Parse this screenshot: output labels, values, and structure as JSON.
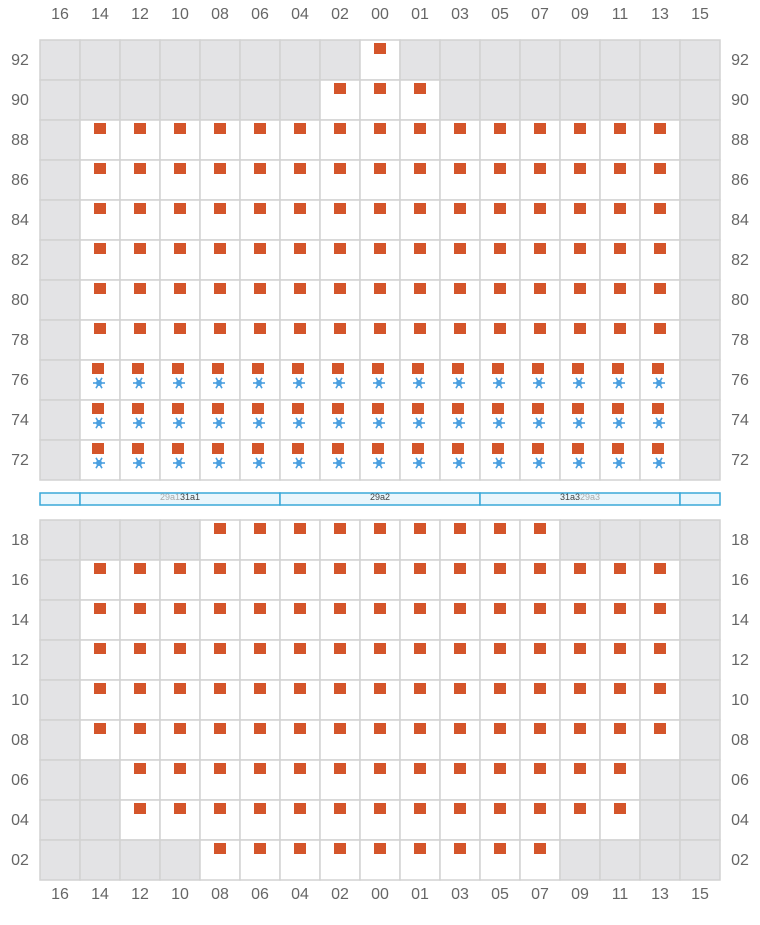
{
  "columns": [
    "16",
    "14",
    "12",
    "10",
    "08",
    "06",
    "04",
    "02",
    "00",
    "01",
    "03",
    "05",
    "07",
    "09",
    "11",
    "13",
    "15"
  ],
  "sections": [
    {
      "rows": [
        {
          "label": "92",
          "cells": "xxxxxxxxcxxxxxxxx"
        },
        {
          "label": "90",
          "cells": "xxxxxxxcccxxxxxxx"
        },
        {
          "label": "88",
          "cells": "xcccccccccccccccx"
        },
        {
          "label": "86",
          "cells": "xcccccccccccccccx"
        },
        {
          "label": "84",
          "cells": "xcccccccccccccccx"
        },
        {
          "label": "82",
          "cells": "xcccccccccccccccx"
        },
        {
          "label": "80",
          "cells": "xcccccccccccccccx"
        },
        {
          "label": "78",
          "cells": "xcccccccccccccccx"
        },
        {
          "label": "76",
          "cells": "xrrrrrrrrrrrrrrrx"
        },
        {
          "label": "74",
          "cells": "xrrrrrrrrrrrrrrrx"
        },
        {
          "label": "72",
          "cells": "xrrrrrrrrrrrrrrrx"
        }
      ]
    },
    {
      "rows": [
        {
          "label": "18",
          "cells": "xxxxcccccccccxxxx"
        },
        {
          "label": "16",
          "cells": "xcccccccccccccccx"
        },
        {
          "label": "14",
          "cells": "xcccccccccccccccx"
        },
        {
          "label": "12",
          "cells": "xcccccccccccccccx"
        },
        {
          "label": "10",
          "cells": "xcccccccccccccccx"
        },
        {
          "label": "08",
          "cells": "xcccccccccccccccx"
        },
        {
          "label": "06",
          "cells": "xxcccccccccccccxx"
        },
        {
          "label": "04",
          "cells": "xxcccccccccccccxx"
        },
        {
          "label": "02",
          "cells": "xxxxcccccccccxxxx"
        }
      ]
    }
  ],
  "bays": [
    {
      "labels": [],
      "colors": []
    },
    {
      "labels": [
        "29a1",
        "31a1"
      ],
      "colors": [
        "#aaaaaa",
        "#444444"
      ]
    },
    {
      "labels": [
        "29a2"
      ],
      "colors": [
        "#444444"
      ]
    },
    {
      "labels": [
        "31a3",
        "29a3"
      ],
      "colors": [
        "#444444",
        "#aaaaaa"
      ]
    },
    {
      "labels": [],
      "colors": []
    }
  ]
}
